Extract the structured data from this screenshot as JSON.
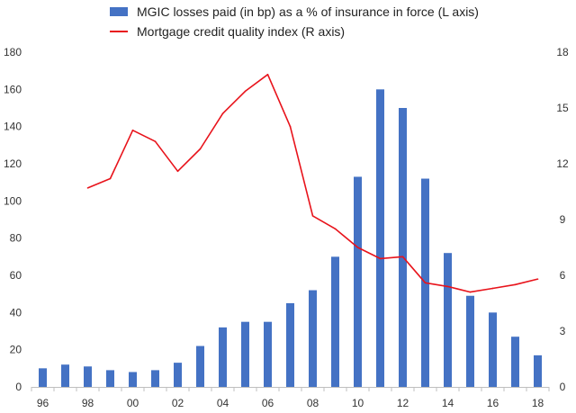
{
  "chart_data": {
    "type": "bar+line",
    "legend": {
      "bar_label": "MGIC losses paid (in bp) as a % of insurance in force (L axis)",
      "line_label": "Mortgage credit quality index (R axis)",
      "placement": "top"
    },
    "colors": {
      "bar": "#4472C4",
      "line": "#E8131B",
      "axis": "#BFBFBF",
      "text": "#333333"
    },
    "categories": [
      "96",
      "97",
      "98",
      "99",
      "00",
      "01",
      "02",
      "03",
      "04",
      "05",
      "06",
      "07",
      "08",
      "09",
      "10",
      "11",
      "12",
      "13",
      "14",
      "15",
      "16",
      "17",
      "18"
    ],
    "x_tick_labels": [
      "96",
      "",
      "98",
      "",
      "00",
      "",
      "02",
      "",
      "04",
      "",
      "06",
      "",
      "08",
      "",
      "10",
      "",
      "12",
      "",
      "14",
      "",
      "16",
      "",
      "18"
    ],
    "left_axis": {
      "min": 0,
      "max": 180,
      "ticks": [
        0,
        20,
        40,
        60,
        80,
        100,
        120,
        140,
        160,
        180
      ]
    },
    "right_axis": {
      "min": 0,
      "max": 18,
      "ticks": [
        0,
        3,
        6,
        9,
        12,
        15,
        18
      ]
    },
    "series": [
      {
        "name": "MGIC losses paid (in bp) as a % of insurance in force (L axis)",
        "type": "bar",
        "axis": "left",
        "values": [
          10,
          12,
          11,
          9,
          8,
          9,
          13,
          22,
          32,
          35,
          35,
          45,
          52,
          70,
          113,
          160,
          150,
          112,
          72,
          49,
          40,
          27,
          17
        ]
      },
      {
        "name": "Mortgage credit quality index (R axis)",
        "type": "line",
        "axis": "right",
        "values": [
          null,
          null,
          10.7,
          11.2,
          13.8,
          13.2,
          11.6,
          12.8,
          14.7,
          15.9,
          16.8,
          14.0,
          9.2,
          8.5,
          7.5,
          6.9,
          7.0,
          5.6,
          5.4,
          5.1,
          5.3,
          5.5,
          5.8
        ]
      }
    ],
    "grid": false
  }
}
